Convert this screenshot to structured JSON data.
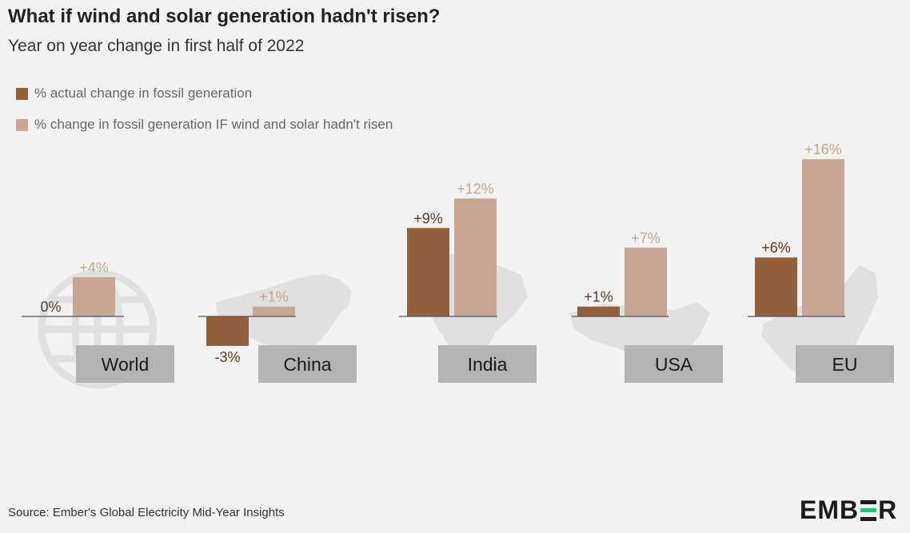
{
  "title": "What if wind and solar generation hadn't risen?",
  "subtitle": "Year on year change in first half of 2022",
  "source": "Source: Ember's Global Electricity Mid-Year Insights",
  "logo": {
    "left": "EMB",
    "right": "R"
  },
  "colors": {
    "actual": "#93603c",
    "counterfactual": "#c7a793",
    "label_box": "#b3b3b3",
    "silhouette": "#e0e0e0"
  },
  "chart_data": {
    "type": "bar",
    "categories": [
      "World",
      "China",
      "India",
      "USA",
      "EU"
    ],
    "series": [
      {
        "name": "% actual change in fossil generation",
        "values": [
          0,
          -3,
          9,
          1,
          6
        ],
        "labels": [
          "0%",
          "-3%",
          "+9%",
          "+1%",
          "+6%"
        ]
      },
      {
        "name": "% change in fossil generation IF wind and solar hadn't risen",
        "values": [
          4,
          1,
          12,
          7,
          16
        ],
        "labels": [
          "+4%",
          "+1%",
          "+12%",
          "+7%",
          "+16%"
        ]
      }
    ],
    "legend": "top-left",
    "grid": false
  }
}
